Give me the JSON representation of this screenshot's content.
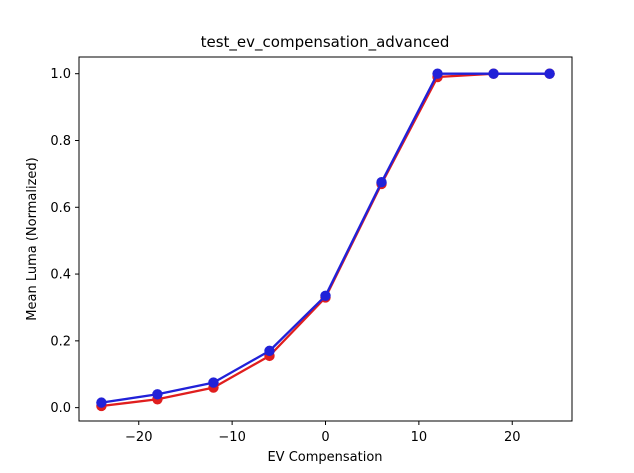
{
  "window": {
    "background": "#ffffff",
    "foreground": "#000000"
  },
  "chart_data": {
    "type": "line",
    "title": "test_ev_compensation_advanced",
    "xlabel": "EV Compensation",
    "ylabel": "Mean Luma (Normalized)",
    "x": [
      -24,
      -18,
      -12,
      -6,
      0,
      6,
      12,
      18,
      24
    ],
    "series": [
      {
        "name": "red-series",
        "color": "#e01e1e",
        "marker": "circle",
        "values": [
          0.005,
          0.025,
          0.06,
          0.155,
          0.33,
          0.67,
          0.99,
          1.0,
          1.0
        ]
      },
      {
        "name": "blue-series",
        "color": "#2121d8",
        "marker": "circle",
        "values": [
          0.015,
          0.04,
          0.075,
          0.17,
          0.335,
          0.675,
          1.0,
          1.0,
          1.0
        ]
      }
    ],
    "xlim": [
      -26.4,
      26.4
    ],
    "ylim": [
      -0.04,
      1.05
    ],
    "xtick_values": [
      -20,
      -10,
      0,
      10,
      20
    ],
    "xtick_labels": [
      "−20",
      "−10",
      "0",
      "10",
      "20"
    ],
    "ytick_values": [
      0,
      0.2,
      0.4,
      0.6,
      0.8,
      1.0
    ],
    "ytick_labels": [
      "0.0",
      "0.2",
      "0.4",
      "0.6",
      "0.8",
      "1.0"
    ],
    "grid": false,
    "legend_position": "none"
  }
}
